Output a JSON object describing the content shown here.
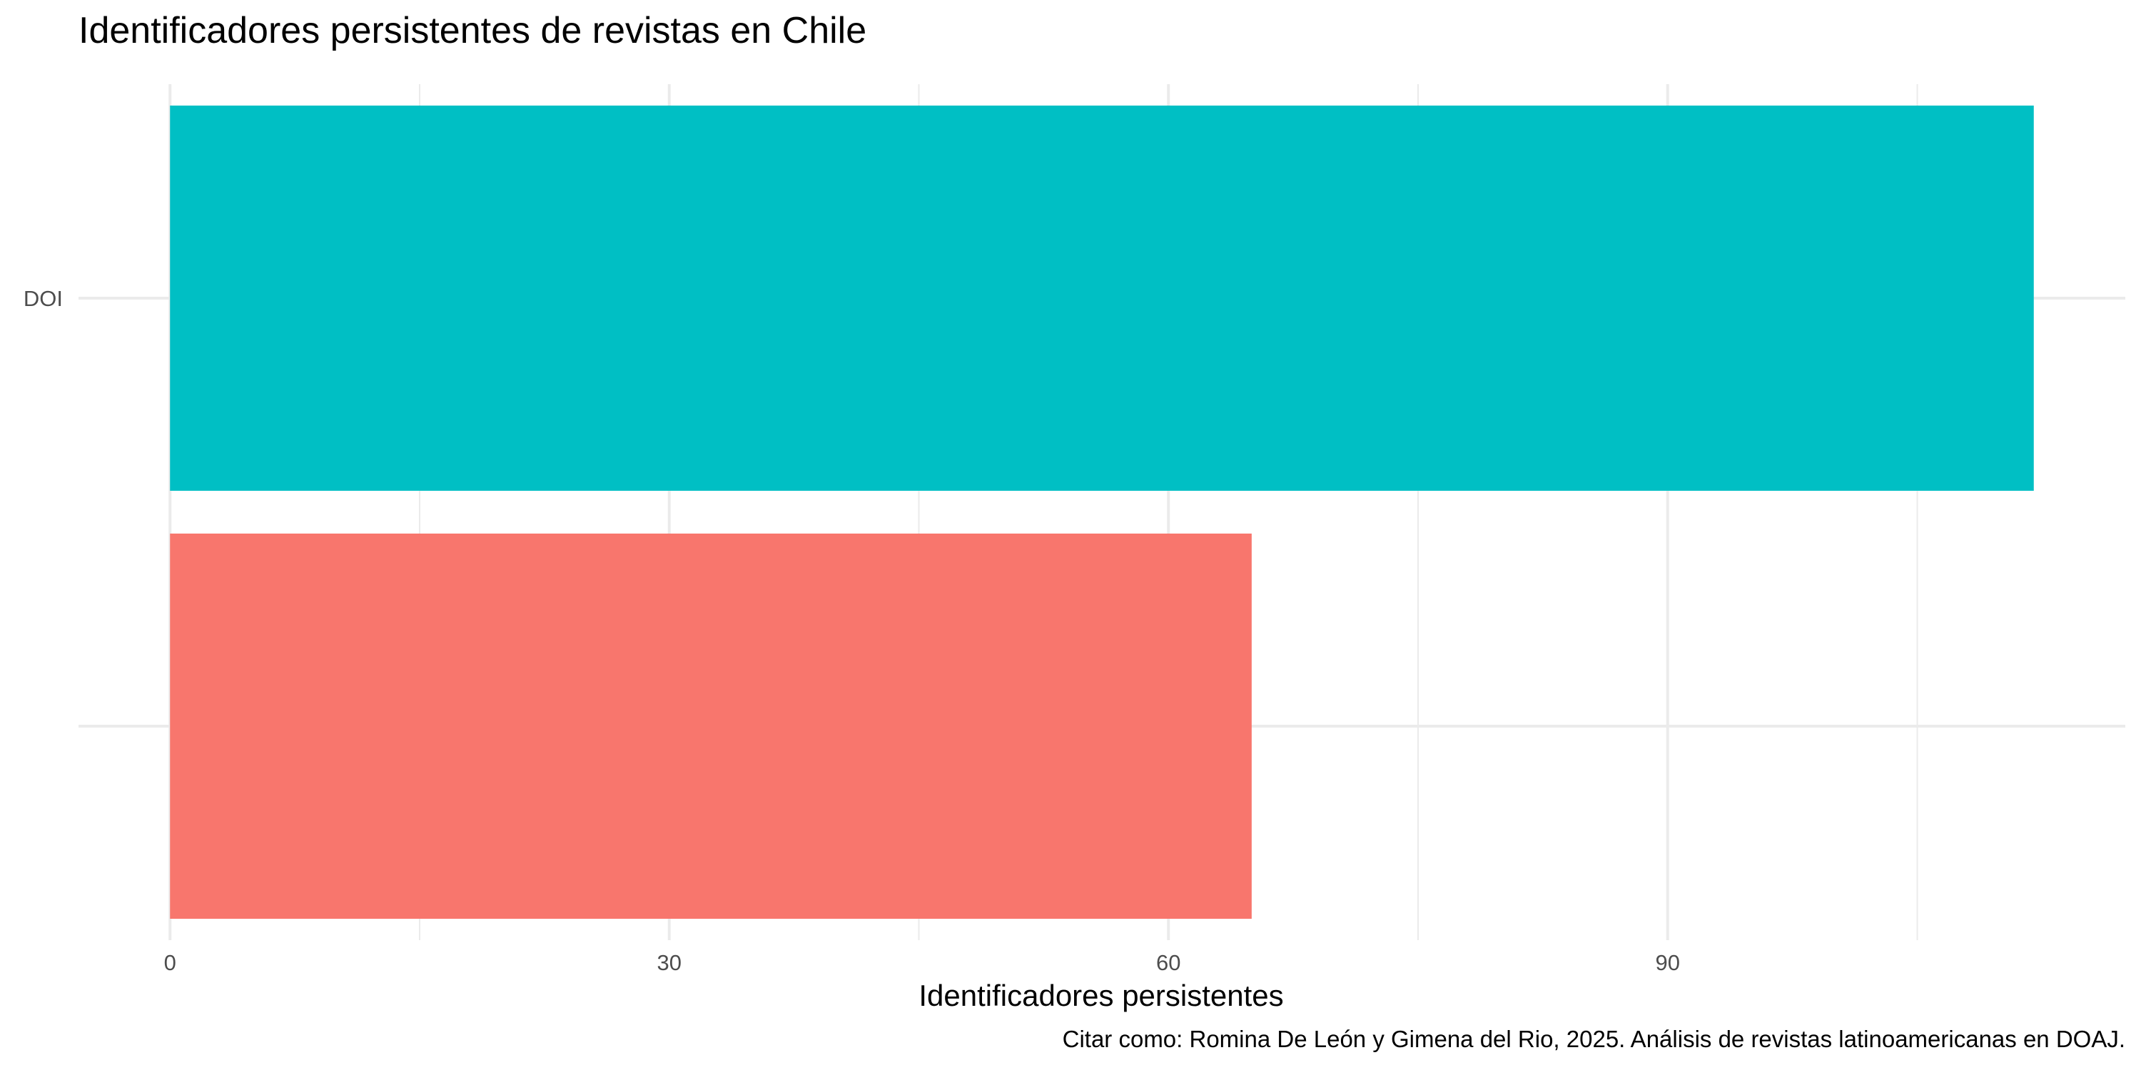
{
  "chart_data": {
    "type": "bar",
    "orientation": "horizontal",
    "title": "Identificadores persistentes de revistas en Chile",
    "xlabel": "Identificadores persistentes",
    "ylabel": "",
    "caption": "Citar como: Romina De León y Gimena del Rio, 2025. Análisis de revistas latinoamericanas en DOAJ.",
    "categories": [
      "DOI",
      ""
    ],
    "values": [
      112,
      65
    ],
    "colors": [
      "#00BFC4",
      "#F8766D"
    ],
    "xlim": [
      -5.5,
      117.5
    ],
    "xticks": [
      0,
      30,
      60,
      90
    ],
    "xtick_labels": [
      "0",
      "30",
      "60",
      "90"
    ],
    "grid": true,
    "legend": "none"
  }
}
